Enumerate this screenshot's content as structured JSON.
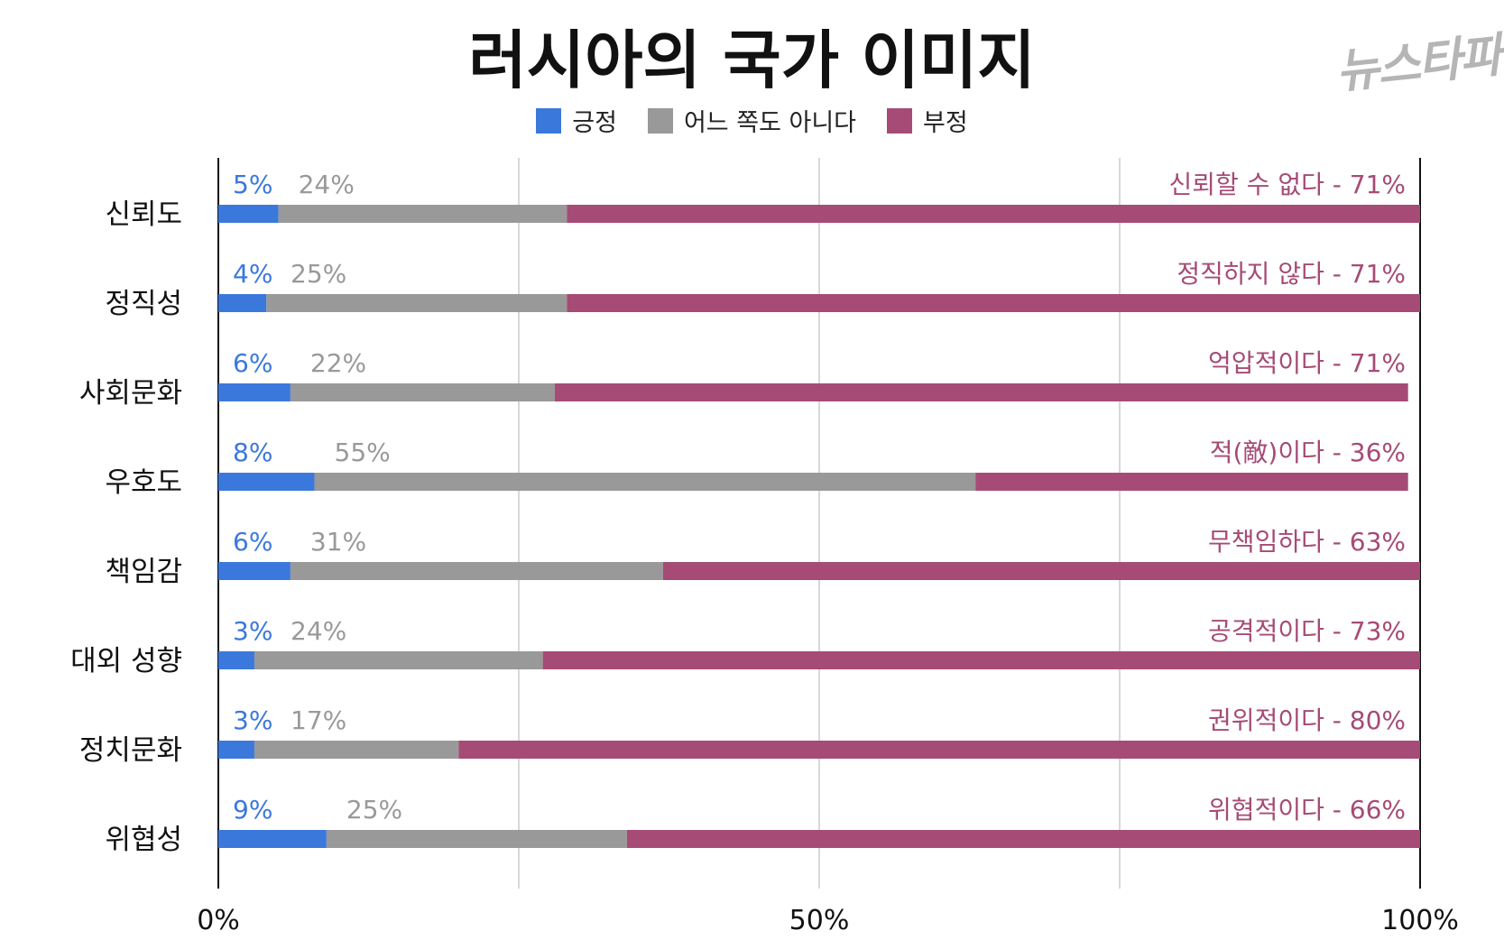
{
  "chart_data": {
    "type": "bar",
    "stacked": true,
    "orientation": "horizontal",
    "title": "러시아의 국가 이미지",
    "categories": [
      "신뢰도",
      "정직성",
      "사회문화",
      "우호도",
      "책임감",
      "대외 성향",
      "정치문화",
      "위협성"
    ],
    "series": [
      {
        "name": "긍정",
        "color": "#3b78dc",
        "values": [
          5,
          4,
          6,
          8,
          6,
          3,
          3,
          9
        ]
      },
      {
        "name": "어느 쪽도 아니다",
        "color": "#999999",
        "values": [
          24,
          25,
          22,
          55,
          31,
          24,
          17,
          25
        ]
      },
      {
        "name": "부정",
        "color": "#a54b76",
        "values": [
          71,
          71,
          71,
          36,
          63,
          73,
          80,
          66
        ]
      }
    ],
    "negative_labels": [
      "신뢰할 수 없다",
      "정직하지 않다",
      "억압적이다",
      "적(敵)이다",
      "무책임하다",
      "공격적이다",
      "권위적이다",
      "위협적이다"
    ],
    "xlim": [
      0,
      100
    ],
    "xticks": [
      0,
      25,
      50,
      75,
      100
    ],
    "xtick_labels": [
      "0%",
      "",
      "50%",
      "",
      "100%"
    ],
    "grid": true,
    "legend_position": "top-center"
  },
  "logo_text": "뉴스타파"
}
